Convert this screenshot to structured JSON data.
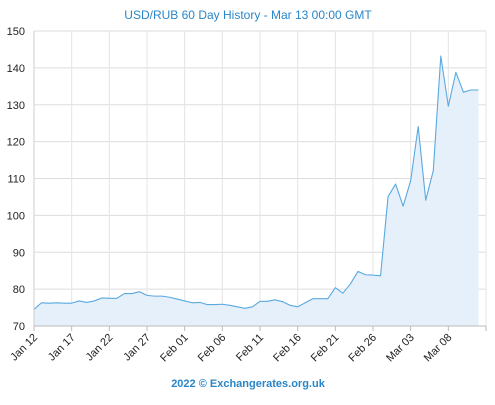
{
  "chart_data": {
    "type": "area",
    "title": "USD/RUB 60 Day History - Mar 13 00:00 GMT",
    "footer": "2022 © Exchangerates.org.uk",
    "xlabel": "",
    "ylabel": "",
    "ylim": [
      70,
      150
    ],
    "yticks": [
      70,
      80,
      90,
      100,
      110,
      120,
      130,
      140,
      150
    ],
    "ytick_labels": [
      "70",
      "80",
      "90",
      "100",
      "110",
      "120",
      "130",
      "140",
      "150"
    ],
    "xlim": [
      0,
      60
    ],
    "x_tick_positions": [
      0,
      5,
      10,
      15,
      20,
      25,
      30,
      35,
      40,
      45,
      50,
      55,
      60
    ],
    "xtick_labels": [
      "Jan 12",
      "Jan 17",
      "Jan 22",
      "Jan 27",
      "Feb 01",
      "Feb 06",
      "Feb 11",
      "Feb 16",
      "Feb 21",
      "Feb 26",
      "Mar 03",
      "Mar 08",
      ""
    ],
    "grid": true,
    "line_color": "#5aa9e0",
    "fill_color": "#e6f0fa",
    "series": [
      {
        "name": "",
        "values": [
          74.5,
          76.3,
          76.2,
          76.3,
          76.2,
          76.2,
          76.8,
          76.4,
          76.8,
          77.6,
          77.5,
          77.5,
          78.8,
          78.8,
          79.3,
          78.3,
          78.1,
          78.1,
          77.8,
          77.3,
          76.8,
          76.3,
          76.4,
          75.8,
          75.8,
          75.9,
          75.6,
          75.2,
          74.8,
          75.2,
          76.7,
          76.7,
          77.1,
          76.6,
          75.6,
          75.2,
          76.3,
          77.4,
          77.4,
          77.4,
          80.4,
          78.9,
          81.4,
          84.8,
          83.9,
          83.8,
          83.6,
          105.1,
          108.5,
          102.5,
          109.4,
          124.1,
          104.1,
          112.1,
          143.2,
          129.6,
          138.8,
          133.4,
          134.0,
          134.0
        ]
      }
    ]
  }
}
